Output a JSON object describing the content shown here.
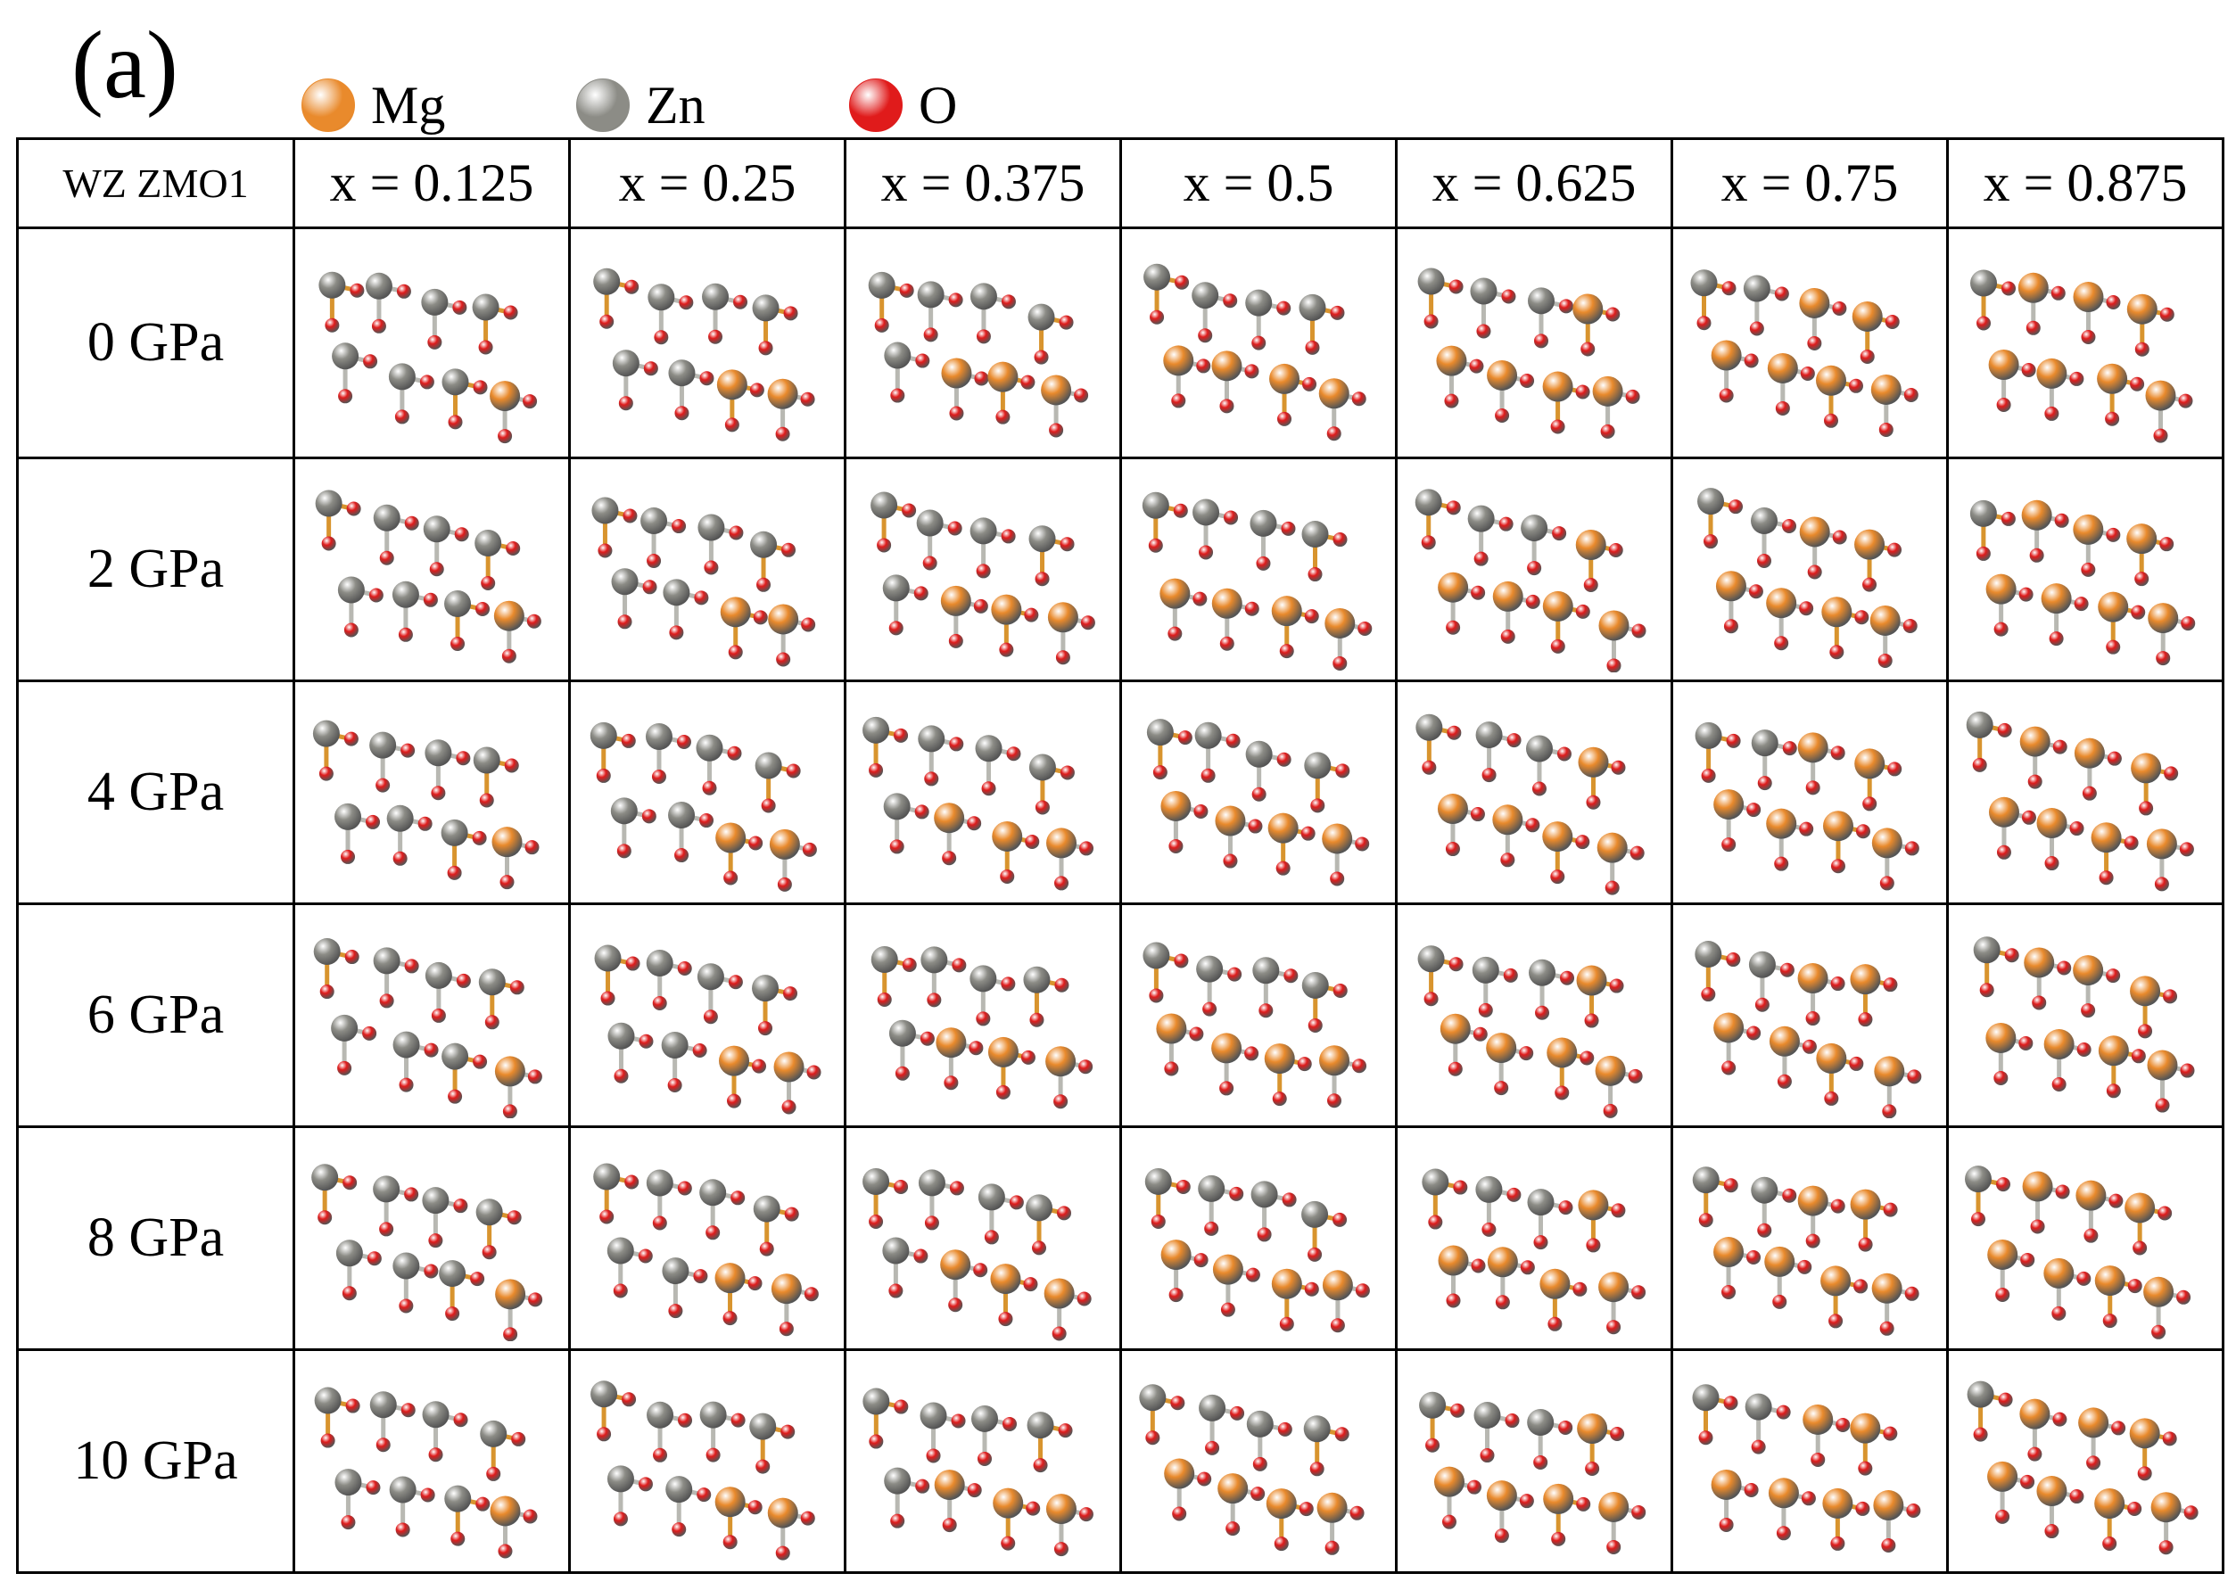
{
  "panel_label": "(a)",
  "legend": [
    {
      "label": "Mg",
      "color": "#e98a2c"
    },
    {
      "label": "Zn",
      "color": "#8c8c86"
    },
    {
      "label": "O",
      "color": "#e01b1b"
    }
  ],
  "table": {
    "corner_label": "WZ ZMO1",
    "columns": [
      "x = 0.125",
      "x = 0.25",
      "x = 0.375",
      "x = 0.5",
      "x = 0.625",
      "x = 0.75",
      "x = 0.875"
    ],
    "mg_counts": [
      1,
      2,
      3,
      4,
      5,
      6,
      7
    ],
    "rows": [
      "0 GPa",
      "2 GPa",
      "4 GPa",
      "6 GPa",
      "8 GPa",
      "10 GPa"
    ]
  }
}
